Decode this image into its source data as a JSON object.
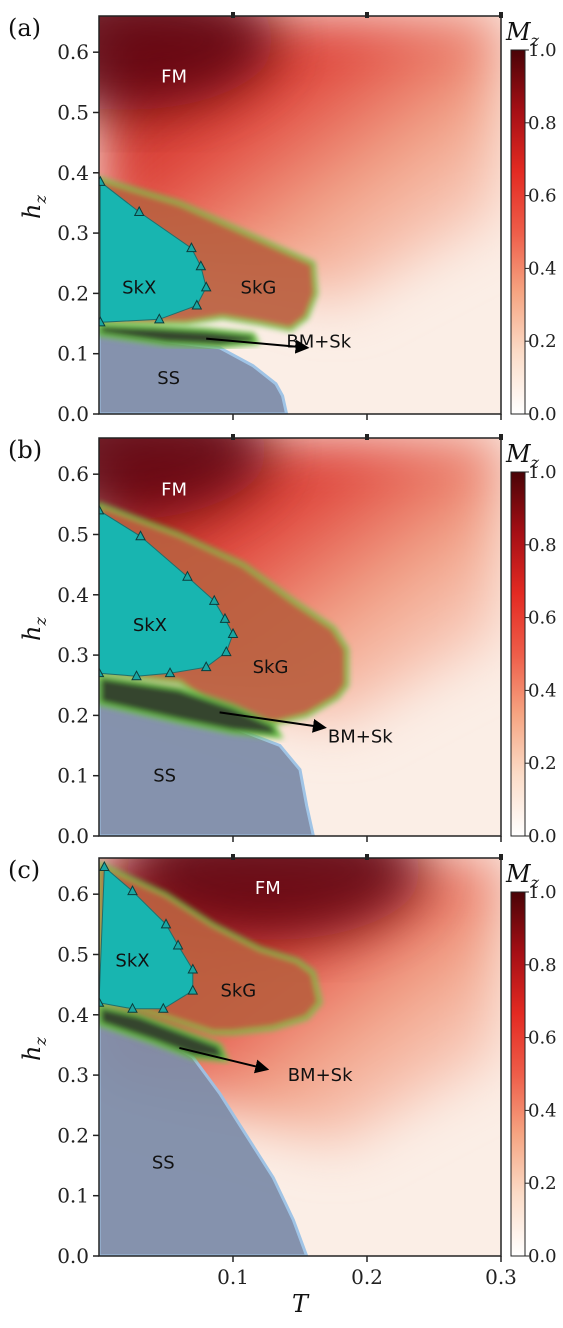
{
  "colorbar_stops": [
    "#ffffff",
    "#fbdcc8",
    "#f6a582",
    "#ee5d49",
    "#e32a22",
    "#a50f15",
    "#4a0307"
  ],
  "region_colors": {
    "FM": "#c43a2e",
    "SkX": "#18b5b0",
    "SkG": "#bb6141",
    "SS": "#7f8eaa",
    "BM": "#35452f",
    "edge": "#6cc44a",
    "background": "#fbeee6"
  },
  "xaxis": {
    "label": "T",
    "ticks": [
      "0.1",
      "0.2",
      "0.3"
    ],
    "tick_values": [
      0.1,
      0.2,
      0.3
    ],
    "range": [
      0,
      0.3
    ]
  },
  "chart_data": [
    {
      "type": "heatmap",
      "panel": "(a)",
      "xlabel": "T",
      "ylabel": "h_z",
      "xlim": [
        0,
        0.3
      ],
      "ylim": [
        0,
        0.66
      ],
      "yticks": [
        "0.0",
        "0.1",
        "0.2",
        "0.3",
        "0.4",
        "0.5",
        "0.6"
      ],
      "ytick_values": [
        0,
        0.1,
        0.2,
        0.3,
        0.4,
        0.5,
        0.6
      ],
      "colorbar": {
        "label": "M_z",
        "label_main": "M",
        "label_sub": "z",
        "ticks": [
          "0.0",
          "0.2",
          "0.4",
          "0.6",
          "0.8",
          "1.0"
        ],
        "tick_values": [
          0,
          0.2,
          0.4,
          0.6,
          0.8,
          1.0
        ],
        "range": [
          0,
          1
        ]
      },
      "labels": [
        {
          "text": "FM",
          "t": 0.056,
          "h": 0.56,
          "color": "#ffffff"
        },
        {
          "text": "SkX",
          "t": 0.03,
          "h": 0.21,
          "color": "#111111"
        },
        {
          "text": "SkG",
          "t": 0.119,
          "h": 0.21,
          "color": "#111111"
        },
        {
          "text": "SS",
          "t": 0.052,
          "h": 0.06,
          "color": "#111111"
        },
        {
          "text": "BM+Sk",
          "t": 0.164,
          "h": 0.12,
          "color": "#111111"
        }
      ],
      "arrow": {
        "from": [
          0.08,
          0.125
        ],
        "to": [
          0.155,
          0.11
        ]
      },
      "skx_boundary": [
        [
          0.001,
          0.385
        ],
        [
          0.03,
          0.335
        ],
        [
          0.069,
          0.275
        ],
        [
          0.076,
          0.245
        ],
        [
          0.08,
          0.21
        ],
        [
          0.073,
          0.18
        ],
        [
          0.045,
          0.157
        ],
        [
          0.001,
          0.152
        ]
      ],
      "skg_boundary": [
        [
          0.0,
          0.39
        ],
        [
          0.06,
          0.35
        ],
        [
          0.105,
          0.305
        ],
        [
          0.14,
          0.27
        ],
        [
          0.16,
          0.25
        ],
        [
          0.162,
          0.2
        ],
        [
          0.155,
          0.16
        ],
        [
          0.143,
          0.14
        ],
        [
          0.12,
          0.15
        ],
        [
          0.092,
          0.16
        ],
        [
          0.065,
          0.15
        ],
        [
          0.0,
          0.15
        ]
      ],
      "bm_boundary": [
        [
          0.0,
          0.148
        ],
        [
          0.04,
          0.145
        ],
        [
          0.08,
          0.14
        ],
        [
          0.115,
          0.132
        ],
        [
          0.118,
          0.118
        ],
        [
          0.09,
          0.112
        ],
        [
          0.05,
          0.116
        ],
        [
          0.0,
          0.132
        ]
      ],
      "ss_boundary": [
        [
          0.0,
          0.14
        ],
        [
          0.05,
          0.12
        ],
        [
          0.09,
          0.11
        ],
        [
          0.115,
          0.08
        ],
        [
          0.132,
          0.05
        ],
        [
          0.137,
          0.03
        ],
        [
          0.14,
          0.0
        ],
        [
          0.0,
          0.0
        ]
      ],
      "fm_peak": [
        0.02,
        0.62
      ]
    },
    {
      "type": "heatmap",
      "panel": "(b)",
      "xlabel": "T",
      "ylabel": "h_z",
      "xlim": [
        0,
        0.3
      ],
      "ylim": [
        0,
        0.66
      ],
      "yticks": [
        "0.0",
        "0.1",
        "0.2",
        "0.3",
        "0.4",
        "0.5",
        "0.6"
      ],
      "ytick_values": [
        0,
        0.1,
        0.2,
        0.3,
        0.4,
        0.5,
        0.6
      ],
      "colorbar": {
        "label": "M_z",
        "label_main": "M",
        "label_sub": "z",
        "ticks": [
          "0.0",
          "0.2",
          "0.4",
          "0.6",
          "0.8",
          "1.0"
        ],
        "tick_values": [
          0,
          0.2,
          0.4,
          0.6,
          0.8,
          1.0
        ],
        "range": [
          0,
          1
        ]
      },
      "labels": [
        {
          "text": "FM",
          "t": 0.056,
          "h": 0.575,
          "color": "#ffffff"
        },
        {
          "text": "SkX",
          "t": 0.038,
          "h": 0.35,
          "color": "#111111"
        },
        {
          "text": "SkG",
          "t": 0.128,
          "h": 0.28,
          "color": "#111111"
        },
        {
          "text": "SS",
          "t": 0.049,
          "h": 0.1,
          "color": "#111111"
        },
        {
          "text": "BM+Sk",
          "t": 0.195,
          "h": 0.165,
          "color": "#111111"
        }
      ],
      "arrow": {
        "from": [
          0.09,
          0.205
        ],
        "to": [
          0.168,
          0.18
        ]
      },
      "skx_boundary": [
        [
          0.0,
          0.54
        ],
        [
          0.031,
          0.497
        ],
        [
          0.066,
          0.43
        ],
        [
          0.086,
          0.39
        ],
        [
          0.094,
          0.36
        ],
        [
          0.1,
          0.335
        ],
        [
          0.095,
          0.305
        ],
        [
          0.08,
          0.28
        ],
        [
          0.053,
          0.27
        ],
        [
          0.028,
          0.265
        ],
        [
          0.0,
          0.27
        ]
      ],
      "skg_boundary": [
        [
          0.0,
          0.55
        ],
        [
          0.06,
          0.5
        ],
        [
          0.108,
          0.45
        ],
        [
          0.145,
          0.39
        ],
        [
          0.175,
          0.345
        ],
        [
          0.185,
          0.31
        ],
        [
          0.185,
          0.25
        ],
        [
          0.178,
          0.23
        ],
        [
          0.155,
          0.2
        ],
        [
          0.12,
          0.18
        ],
        [
          0.09,
          0.2
        ],
        [
          0.06,
          0.255
        ],
        [
          0.0,
          0.27
        ]
      ],
      "bm_boundary": [
        [
          0.0,
          0.265
        ],
        [
          0.06,
          0.245
        ],
        [
          0.1,
          0.215
        ],
        [
          0.13,
          0.185
        ],
        [
          0.135,
          0.165
        ],
        [
          0.1,
          0.172
        ],
        [
          0.06,
          0.19
        ],
        [
          0.0,
          0.22
        ]
      ],
      "ss_boundary": [
        [
          0.0,
          0.255
        ],
        [
          0.05,
          0.22
        ],
        [
          0.1,
          0.18
        ],
        [
          0.135,
          0.15
        ],
        [
          0.15,
          0.11
        ],
        [
          0.155,
          0.05
        ],
        [
          0.16,
          0.0
        ],
        [
          0.0,
          0.0
        ]
      ],
      "fm_peak": [
        0.015,
        0.64
      ]
    },
    {
      "type": "heatmap",
      "panel": "(c)",
      "xlabel": "T",
      "ylabel": "h_z",
      "xlim": [
        0,
        0.3
      ],
      "ylim": [
        0,
        0.66
      ],
      "yticks": [
        "0.0",
        "0.1",
        "0.2",
        "0.3",
        "0.4",
        "0.5",
        "0.6"
      ],
      "ytick_values": [
        0,
        0.1,
        0.2,
        0.3,
        0.4,
        0.5,
        0.6
      ],
      "colorbar": {
        "label": "M_z",
        "label_main": "M",
        "label_sub": "z",
        "ticks": [
          "0.0",
          "0.2",
          "0.4",
          "0.6",
          "0.8",
          "1.0"
        ],
        "tick_values": [
          0,
          0.2,
          0.4,
          0.6,
          0.8,
          1.0
        ],
        "range": [
          0,
          1
        ]
      },
      "labels": [
        {
          "text": "FM",
          "t": 0.126,
          "h": 0.61,
          "color": "#ffffff"
        },
        {
          "text": "SkX",
          "t": 0.025,
          "h": 0.49,
          "color": "#111111"
        },
        {
          "text": "SkG",
          "t": 0.104,
          "h": 0.44,
          "color": "#111111"
        },
        {
          "text": "SS",
          "t": 0.048,
          "h": 0.155,
          "color": "#111111"
        },
        {
          "text": "BM+Sk",
          "t": 0.165,
          "h": 0.3,
          "color": "#111111"
        }
      ],
      "arrow": {
        "from": [
          0.06,
          0.345
        ],
        "to": [
          0.125,
          0.31
        ]
      },
      "skx_boundary": [
        [
          0.004,
          0.645
        ],
        [
          0.025,
          0.605
        ],
        [
          0.05,
          0.55
        ],
        [
          0.059,
          0.515
        ],
        [
          0.07,
          0.475
        ],
        [
          0.07,
          0.44
        ],
        [
          0.048,
          0.41
        ],
        [
          0.025,
          0.41
        ],
        [
          0.0,
          0.42
        ]
      ],
      "skg_boundary": [
        [
          0.0,
          0.65
        ],
        [
          0.05,
          0.6
        ],
        [
          0.085,
          0.55
        ],
        [
          0.12,
          0.51
        ],
        [
          0.148,
          0.49
        ],
        [
          0.16,
          0.47
        ],
        [
          0.165,
          0.42
        ],
        [
          0.155,
          0.395
        ],
        [
          0.13,
          0.378
        ],
        [
          0.1,
          0.37
        ],
        [
          0.085,
          0.37
        ],
        [
          0.06,
          0.388
        ],
        [
          0.03,
          0.41
        ],
        [
          0.0,
          0.42
        ]
      ],
      "bm_boundary": [
        [
          0.0,
          0.415
        ],
        [
          0.03,
          0.4
        ],
        [
          0.06,
          0.375
        ],
        [
          0.09,
          0.35
        ],
        [
          0.095,
          0.325
        ],
        [
          0.07,
          0.33
        ],
        [
          0.04,
          0.355
        ],
        [
          0.0,
          0.385
        ]
      ],
      "ss_boundary": [
        [
          0.0,
          0.395
        ],
        [
          0.04,
          0.37
        ],
        [
          0.07,
          0.33
        ],
        [
          0.09,
          0.27
        ],
        [
          0.11,
          0.2
        ],
        [
          0.13,
          0.13
        ],
        [
          0.145,
          0.06
        ],
        [
          0.155,
          0.0
        ],
        [
          0.0,
          0.0
        ]
      ],
      "fm_peak": [
        0.13,
        0.64
      ]
    }
  ]
}
